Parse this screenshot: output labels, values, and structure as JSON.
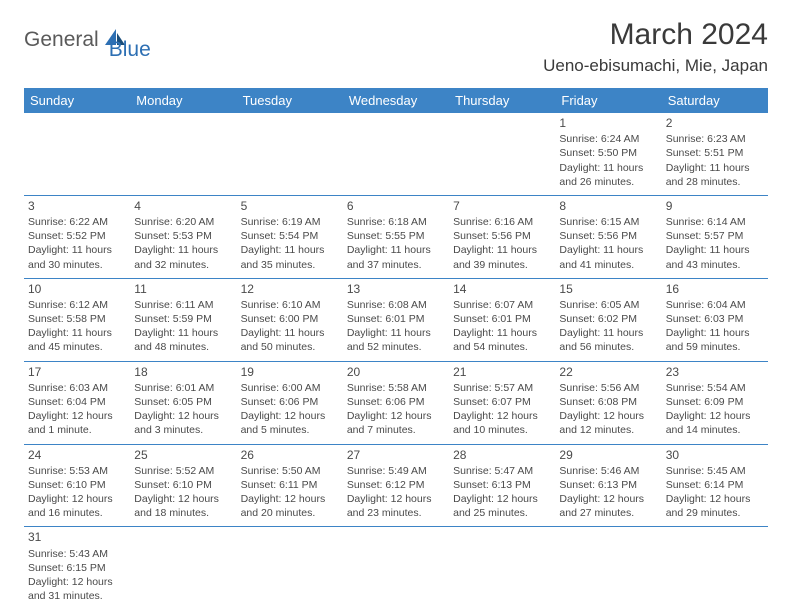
{
  "header": {
    "logo_general": "General",
    "logo_blue": "Blue",
    "title": "March 2024",
    "location": "Ueno-ebisumachi, Mie, Japan"
  },
  "colors": {
    "header_bg": "#3d84c6",
    "header_text": "#ffffff",
    "border": "#3d84c6",
    "text": "#4a4a4a",
    "logo_gray": "#5a5a5a",
    "logo_blue": "#2d6fb3",
    "page_bg": "#ffffff"
  },
  "weekdays": [
    "Sunday",
    "Monday",
    "Tuesday",
    "Wednesday",
    "Thursday",
    "Friday",
    "Saturday"
  ],
  "weeks": [
    [
      null,
      null,
      null,
      null,
      null,
      {
        "d": "1",
        "sr": "6:24 AM",
        "ss": "5:50 PM",
        "dl": "11 hours and 26 minutes."
      },
      {
        "d": "2",
        "sr": "6:23 AM",
        "ss": "5:51 PM",
        "dl": "11 hours and 28 minutes."
      }
    ],
    [
      {
        "d": "3",
        "sr": "6:22 AM",
        "ss": "5:52 PM",
        "dl": "11 hours and 30 minutes."
      },
      {
        "d": "4",
        "sr": "6:20 AM",
        "ss": "5:53 PM",
        "dl": "11 hours and 32 minutes."
      },
      {
        "d": "5",
        "sr": "6:19 AM",
        "ss": "5:54 PM",
        "dl": "11 hours and 35 minutes."
      },
      {
        "d": "6",
        "sr": "6:18 AM",
        "ss": "5:55 PM",
        "dl": "11 hours and 37 minutes."
      },
      {
        "d": "7",
        "sr": "6:16 AM",
        "ss": "5:56 PM",
        "dl": "11 hours and 39 minutes."
      },
      {
        "d": "8",
        "sr": "6:15 AM",
        "ss": "5:56 PM",
        "dl": "11 hours and 41 minutes."
      },
      {
        "d": "9",
        "sr": "6:14 AM",
        "ss": "5:57 PM",
        "dl": "11 hours and 43 minutes."
      }
    ],
    [
      {
        "d": "10",
        "sr": "6:12 AM",
        "ss": "5:58 PM",
        "dl": "11 hours and 45 minutes."
      },
      {
        "d": "11",
        "sr": "6:11 AM",
        "ss": "5:59 PM",
        "dl": "11 hours and 48 minutes."
      },
      {
        "d": "12",
        "sr": "6:10 AM",
        "ss": "6:00 PM",
        "dl": "11 hours and 50 minutes."
      },
      {
        "d": "13",
        "sr": "6:08 AM",
        "ss": "6:01 PM",
        "dl": "11 hours and 52 minutes."
      },
      {
        "d": "14",
        "sr": "6:07 AM",
        "ss": "6:01 PM",
        "dl": "11 hours and 54 minutes."
      },
      {
        "d": "15",
        "sr": "6:05 AM",
        "ss": "6:02 PM",
        "dl": "11 hours and 56 minutes."
      },
      {
        "d": "16",
        "sr": "6:04 AM",
        "ss": "6:03 PM",
        "dl": "11 hours and 59 minutes."
      }
    ],
    [
      {
        "d": "17",
        "sr": "6:03 AM",
        "ss": "6:04 PM",
        "dl": "12 hours and 1 minute."
      },
      {
        "d": "18",
        "sr": "6:01 AM",
        "ss": "6:05 PM",
        "dl": "12 hours and 3 minutes."
      },
      {
        "d": "19",
        "sr": "6:00 AM",
        "ss": "6:06 PM",
        "dl": "12 hours and 5 minutes."
      },
      {
        "d": "20",
        "sr": "5:58 AM",
        "ss": "6:06 PM",
        "dl": "12 hours and 7 minutes."
      },
      {
        "d": "21",
        "sr": "5:57 AM",
        "ss": "6:07 PM",
        "dl": "12 hours and 10 minutes."
      },
      {
        "d": "22",
        "sr": "5:56 AM",
        "ss": "6:08 PM",
        "dl": "12 hours and 12 minutes."
      },
      {
        "d": "23",
        "sr": "5:54 AM",
        "ss": "6:09 PM",
        "dl": "12 hours and 14 minutes."
      }
    ],
    [
      {
        "d": "24",
        "sr": "5:53 AM",
        "ss": "6:10 PM",
        "dl": "12 hours and 16 minutes."
      },
      {
        "d": "25",
        "sr": "5:52 AM",
        "ss": "6:10 PM",
        "dl": "12 hours and 18 minutes."
      },
      {
        "d": "26",
        "sr": "5:50 AM",
        "ss": "6:11 PM",
        "dl": "12 hours and 20 minutes."
      },
      {
        "d": "27",
        "sr": "5:49 AM",
        "ss": "6:12 PM",
        "dl": "12 hours and 23 minutes."
      },
      {
        "d": "28",
        "sr": "5:47 AM",
        "ss": "6:13 PM",
        "dl": "12 hours and 25 minutes."
      },
      {
        "d": "29",
        "sr": "5:46 AM",
        "ss": "6:13 PM",
        "dl": "12 hours and 27 minutes."
      },
      {
        "d": "30",
        "sr": "5:45 AM",
        "ss": "6:14 PM",
        "dl": "12 hours and 29 minutes."
      }
    ],
    [
      {
        "d": "31",
        "sr": "5:43 AM",
        "ss": "6:15 PM",
        "dl": "12 hours and 31 minutes."
      },
      null,
      null,
      null,
      null,
      null,
      null
    ]
  ],
  "labels": {
    "sunrise": "Sunrise:",
    "sunset": "Sunset:",
    "daylight": "Daylight:"
  }
}
